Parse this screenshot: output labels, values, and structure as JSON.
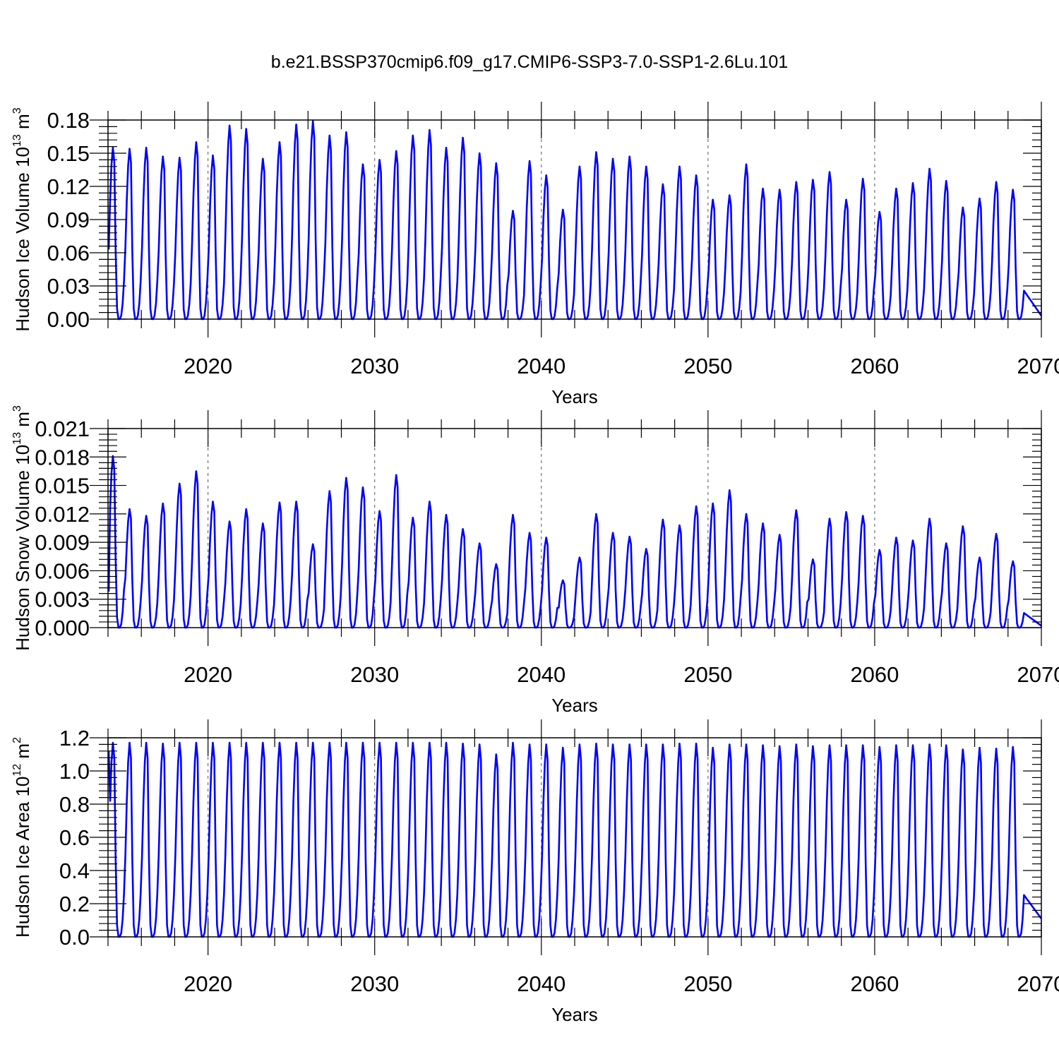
{
  "figure": {
    "title": "b.e21.BSSP370cmip6.f09_g17.CMIP6-SSP3-7.0-SSP1-2.6Lu.101",
    "line_color": "#0000ff"
  },
  "chart_data": [
    {
      "type": "line",
      "ylabel_main": "Hudson Ice Volume 10",
      "ylabel_exp": "13",
      "ylabel_unit": "m",
      "ylabel_unit_exp": "3",
      "xlabel": "Years",
      "xlim": [
        2014,
        2070
      ],
      "ylim": [
        0,
        0.18
      ],
      "xticks": [
        2020,
        2030,
        2040,
        2050,
        2060,
        2070
      ],
      "xtick_labels": [
        "2020",
        "2030",
        "2040",
        "2050",
        "2060",
        "2070"
      ],
      "yticks": [
        0,
        0.03,
        0.06,
        0.09,
        0.12,
        0.15,
        0.18
      ],
      "ytick_labels": [
        "0.00",
        "0.03",
        "0.06",
        "0.09",
        "0.12",
        "0.15",
        "0.18"
      ],
      "vertical_grid": true,
      "start_value": 0.063,
      "end_value": 0.003,
      "annual_peaks": [
        0.155,
        0.154,
        0.155,
        0.147,
        0.146,
        0.16,
        0.148,
        0.175,
        0.172,
        0.145,
        0.16,
        0.176,
        0.179,
        0.166,
        0.169,
        0.14,
        0.144,
        0.152,
        0.166,
        0.171,
        0.155,
        0.164,
        0.15,
        0.141,
        0.098,
        0.143,
        0.13,
        0.099,
        0.138,
        0.151,
        0.145,
        0.147,
        0.138,
        0.122,
        0.138,
        0.13,
        0.108,
        0.112,
        0.14,
        0.118,
        0.117,
        0.124,
        0.126,
        0.133,
        0.108,
        0.127,
        0.097,
        0.118,
        0.123,
        0.136,
        0.125,
        0.101,
        0.109,
        0.124,
        0.117
      ]
    },
    {
      "type": "line",
      "ylabel_main": "Hudson Snow Volume 10",
      "ylabel_exp": "13",
      "ylabel_unit": "m",
      "ylabel_unit_exp": "3",
      "xlabel": "Years",
      "xlim": [
        2014,
        2070
      ],
      "ylim": [
        0,
        0.021
      ],
      "xticks": [
        2020,
        2030,
        2040,
        2050,
        2060,
        2070
      ],
      "xtick_labels": [
        "2020",
        "2030",
        "2040",
        "2050",
        "2060",
        "2070"
      ],
      "yticks": [
        0,
        0.003,
        0.006,
        0.009,
        0.012,
        0.015,
        0.018,
        0.021
      ],
      "ytick_labels": [
        "0.000",
        "0.003",
        "0.006",
        "0.009",
        "0.012",
        "0.015",
        "0.018",
        "0.021"
      ],
      "vertical_grid": true,
      "start_value": 0.0038,
      "end_value": 0.0002,
      "annual_peaks": [
        0.0181,
        0.0125,
        0.0118,
        0.0131,
        0.0152,
        0.0165,
        0.0133,
        0.0112,
        0.0125,
        0.011,
        0.0132,
        0.0133,
        0.0088,
        0.0144,
        0.0158,
        0.0148,
        0.0123,
        0.0161,
        0.0116,
        0.0133,
        0.0119,
        0.0104,
        0.0089,
        0.0067,
        0.0119,
        0.01,
        0.0095,
        0.005,
        0.0074,
        0.012,
        0.01,
        0.0096,
        0.0083,
        0.0114,
        0.0108,
        0.0128,
        0.0131,
        0.0145,
        0.012,
        0.011,
        0.0098,
        0.0124,
        0.0072,
        0.0115,
        0.0122,
        0.0118,
        0.0082,
        0.0095,
        0.0092,
        0.0115,
        0.0089,
        0.0107,
        0.0074,
        0.0099,
        0.007
      ]
    },
    {
      "type": "line",
      "ylabel_main": "Hudson Ice Area 10",
      "ylabel_exp": "12",
      "ylabel_unit": "m",
      "ylabel_unit_exp": "2",
      "xlabel": "Years",
      "xlim": [
        2014,
        2070
      ],
      "ylim": [
        0,
        1.2
      ],
      "xticks": [
        2020,
        2030,
        2040,
        2050,
        2060,
        2070
      ],
      "xtick_labels": [
        "2020",
        "2030",
        "2040",
        "2050",
        "2060",
        "2070"
      ],
      "yticks": [
        0,
        0.2,
        0.4,
        0.6,
        0.8,
        1.0,
        1.2
      ],
      "ytick_labels": [
        "0.0",
        "0.2",
        "0.4",
        "0.6",
        "0.8",
        "1.0",
        "1.2"
      ],
      "vertical_grid": true,
      "start_value": 1.12,
      "end_value": 0.11,
      "annual_peaks": [
        1.17,
        1.17,
        1.17,
        1.165,
        1.17,
        1.17,
        1.17,
        1.17,
        1.17,
        1.17,
        1.17,
        1.17,
        1.17,
        1.17,
        1.17,
        1.17,
        1.17,
        1.17,
        1.17,
        1.17,
        1.17,
        1.165,
        1.16,
        1.1,
        1.17,
        1.16,
        1.16,
        1.14,
        1.16,
        1.165,
        1.16,
        1.16,
        1.16,
        1.16,
        1.165,
        1.165,
        1.14,
        1.16,
        1.16,
        1.155,
        1.15,
        1.16,
        1.15,
        1.155,
        1.155,
        1.155,
        1.145,
        1.155,
        1.155,
        1.16,
        1.155,
        1.13,
        1.14,
        1.135,
        1.145
      ]
    }
  ]
}
